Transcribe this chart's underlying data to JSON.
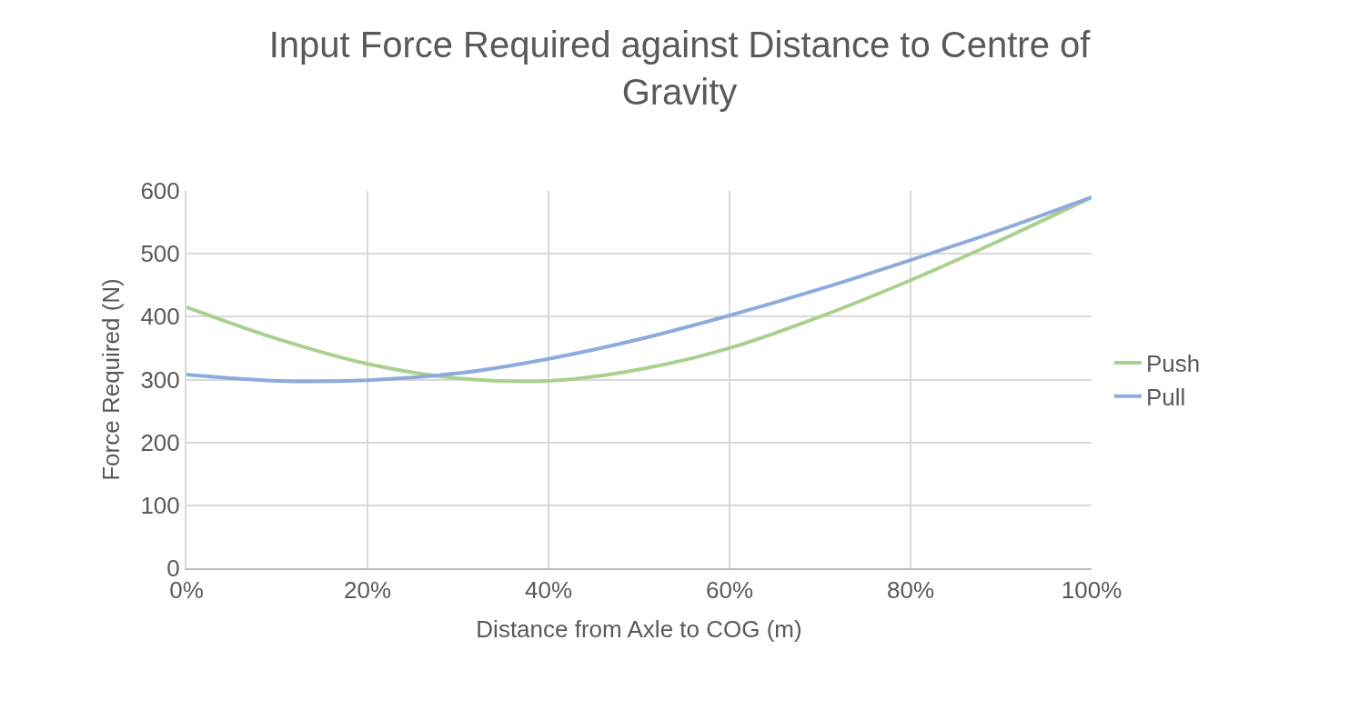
{
  "chart_data": {
    "type": "line",
    "title": "Input Force Required against Distance to Centre of Gravity",
    "xlabel": "Distance from Axle to COG (m)",
    "ylabel": "Force Required (N)",
    "x": [
      0,
      10,
      20,
      30,
      40,
      50,
      60,
      70,
      80,
      90,
      100
    ],
    "series": [
      {
        "name": "Push",
        "color": "#a9d18e",
        "values": [
          415,
          365,
          325,
          302,
          298,
          316,
          350,
          400,
          458,
          522,
          590
        ]
      },
      {
        "name": "Pull",
        "color": "#8faadc",
        "values": [
          308,
          298,
          299,
          310,
          333,
          364,
          402,
          444,
          490,
          538,
          590
        ]
      }
    ],
    "xlim": [
      0,
      100
    ],
    "xticks": [
      {
        "value": 0,
        "label": "0%"
      },
      {
        "value": 20,
        "label": "20%"
      },
      {
        "value": 40,
        "label": "40%"
      },
      {
        "value": 60,
        "label": "60%"
      },
      {
        "value": 80,
        "label": "80%"
      },
      {
        "value": 100,
        "label": "100%"
      }
    ],
    "ylim": [
      0,
      600
    ],
    "yticks": [
      0,
      100,
      200,
      300,
      400,
      500,
      600
    ],
    "grid": true,
    "legend": "right",
    "marker": "none",
    "line_style": "solid"
  }
}
